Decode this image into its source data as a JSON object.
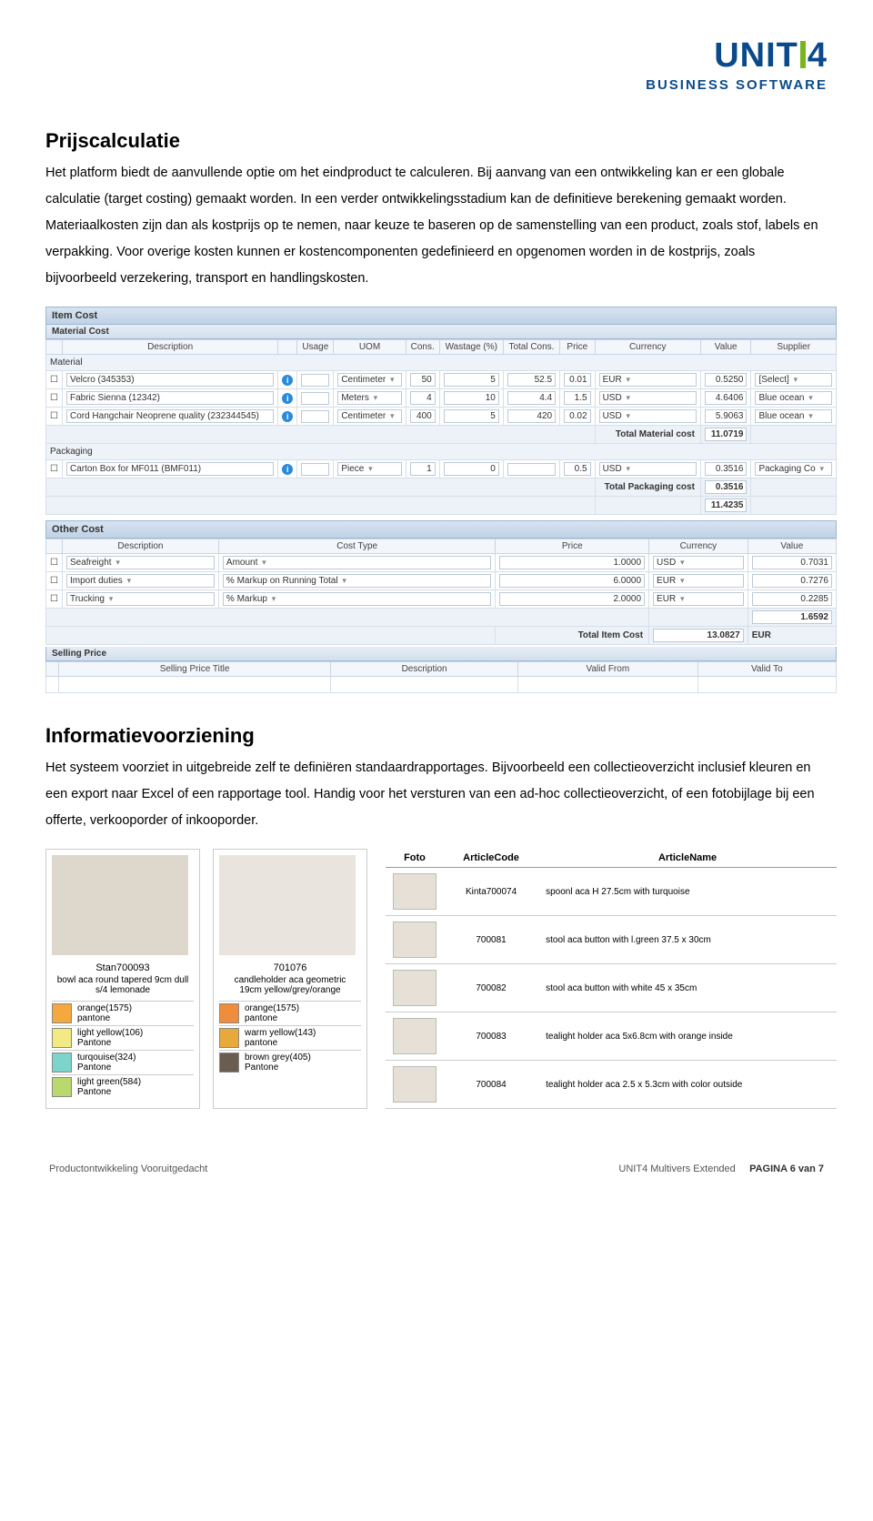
{
  "logo": {
    "brand_prefix": "UNIT",
    "brand_suffix": "4",
    "subtitle": "BUSINESS SOFTWARE"
  },
  "section1": {
    "heading": "Prijscalculatie",
    "body": "Het platform biedt de aanvullende optie om het eindproduct te calculeren. Bij aanvang van een ontwikkeling kan er een globale calculatie (target costing) gemaakt worden. In een verder ontwikkelingsstadium kan de definitieve berekening gemaakt worden. Materiaalkosten zijn dan als kostprijs op te nemen, naar keuze te baseren op de samenstelling van een product, zoals stof, labels en verpakking. Voor overige kosten kunnen er kostencomponenten gedefinieerd en opgenomen worden in de kostprijs, zoals bijvoorbeeld verzekering, transport en handlingskosten."
  },
  "erp": {
    "item_cost_title": "Item Cost",
    "material_cost_title": "Material Cost",
    "headers_material": [
      "",
      "Description",
      "",
      "Usage",
      "UOM",
      "Cons.",
      "Wastage (%)",
      "Total Cons.",
      "Price",
      "Currency",
      "Value",
      "Supplier"
    ],
    "material_group_label": "Material",
    "material_rows": [
      {
        "desc": "Velcro (345353)",
        "usage": "",
        "uom": "Centimeter",
        "cons": "50",
        "wastage": "5",
        "totalcons": "52.5",
        "price": "0.01",
        "curr": "EUR",
        "value": "0.5250",
        "supplier": "[Select]"
      },
      {
        "desc": "Fabric Sienna (12342)",
        "usage": "",
        "uom": "Meters",
        "cons": "4",
        "wastage": "10",
        "totalcons": "4.4",
        "price": "1.5",
        "curr": "USD",
        "value": "4.6406",
        "supplier": "Blue ocean"
      },
      {
        "desc": "Cord Hangchair Neoprene quality (232344545)",
        "usage": "",
        "uom": "Centimeter",
        "cons": "400",
        "wastage": "5",
        "totalcons": "420",
        "price": "0.02",
        "curr": "USD",
        "value": "5.9063",
        "supplier": "Blue ocean"
      }
    ],
    "total_material_label": "Total Material cost",
    "total_material_value": "11.0719",
    "packaging_group_label": "Packaging",
    "packaging_rows": [
      {
        "desc": "Carton Box for MF011 (BMF011)",
        "usage": "",
        "uom": "Piece",
        "cons": "1",
        "wastage": "0",
        "totalcons": "",
        "price": "0.5",
        "curr": "USD",
        "value": "0.3516",
        "supplier": "Packaging Co"
      }
    ],
    "total_packaging_label": "Total Packaging cost",
    "total_packaging_value": "0.3516",
    "grand_value": "11.4235",
    "other_cost_title": "Other Cost",
    "headers_other": [
      "",
      "Description",
      "Cost Type",
      "Price",
      "Currency",
      "Value"
    ],
    "other_rows": [
      {
        "desc": "Seafreight",
        "type": "Amount",
        "price": "1.0000",
        "curr": "USD",
        "value": "0.7031"
      },
      {
        "desc": "Import duties",
        "type": "% Markup on Running Total",
        "price": "6.0000",
        "curr": "EUR",
        "value": "0.7276"
      },
      {
        "desc": "Trucking",
        "type": "% Markup",
        "price": "2.0000",
        "curr": "EUR",
        "value": "0.2285"
      }
    ],
    "other_subtotal": "1.6592",
    "total_item_cost_label": "Total Item Cost",
    "total_item_cost_value": "13.0827",
    "total_item_cost_curr": "EUR",
    "selling_price_title": "Selling Price",
    "headers_selling": [
      "",
      "Selling Price Title",
      "Description",
      "Valid From",
      "Valid To"
    ]
  },
  "section2": {
    "heading": "Informatievoorziening",
    "body": "Het systeem voorziet in uitgebreide zelf te definiëren standaardrapportages. Bijvoorbeeld een collectieoverzicht inclusief kleuren en een export naar Excel of een rapportage tool. Handig voor het versturen van een ad-hoc collectieoverzicht, of een fotobijlage bij een offerte, verkooporder of inkooporder."
  },
  "report": {
    "left_cols": [
      {
        "code": "Stan700093",
        "name": "bowl aca round tapered 9cm dull s/4 lemonade",
        "thumb_bg": "#ded7cb",
        "swatches": [
          {
            "hex": "#f5a83e",
            "label": "orange(1575)",
            "sub": "pantone"
          },
          {
            "hex": "#f3ea84",
            "label": "light yellow(106)",
            "sub": "Pantone"
          },
          {
            "hex": "#7dd4cb",
            "label": "turqouise(324)",
            "sub": "Pantone"
          },
          {
            "hex": "#b9d96e",
            "label": "light green(584)",
            "sub": "Pantone"
          }
        ]
      },
      {
        "code": "701076",
        "name": "candleholder aca geometric 19cm yellow/grey/orange",
        "thumb_bg": "#e9e5de",
        "swatches": [
          {
            "hex": "#ef8d3c",
            "label": "orange(1575)",
            "sub": "pantone"
          },
          {
            "hex": "#e6a93a",
            "label": "warm yellow(143)",
            "sub": "pantone"
          },
          {
            "hex": "#6a5c4f",
            "label": "brown grey(405)",
            "sub": "Pantone"
          }
        ]
      }
    ],
    "right": {
      "headers": [
        "Foto",
        "ArticleCode",
        "ArticleName"
      ],
      "rows": [
        {
          "thumb": "#e6e0d6",
          "code": "Kinta700074",
          "name": "spoonl aca H 27.5cm with turquoise"
        },
        {
          "thumb": "#e6e0d6",
          "code": "700081",
          "name": "stool aca button with l.green 37.5 x 30cm"
        },
        {
          "thumb": "#e6e0d6",
          "code": "700082",
          "name": "stool aca button with white 45 x 35cm"
        },
        {
          "thumb": "#e6e0d6",
          "code": "700083",
          "name": "tealight holder aca 5x6.8cm with orange inside"
        },
        {
          "thumb": "#e6e0d6",
          "code": "700084",
          "name": "tealight holder aca 2.5 x 5.3cm with color outside"
        }
      ]
    }
  },
  "footer": {
    "left": "Productontwikkeling Vooruitgedacht",
    "right_product": "UNIT4 Multivers Extended",
    "right_page": "PAGINA 6 van 7"
  }
}
